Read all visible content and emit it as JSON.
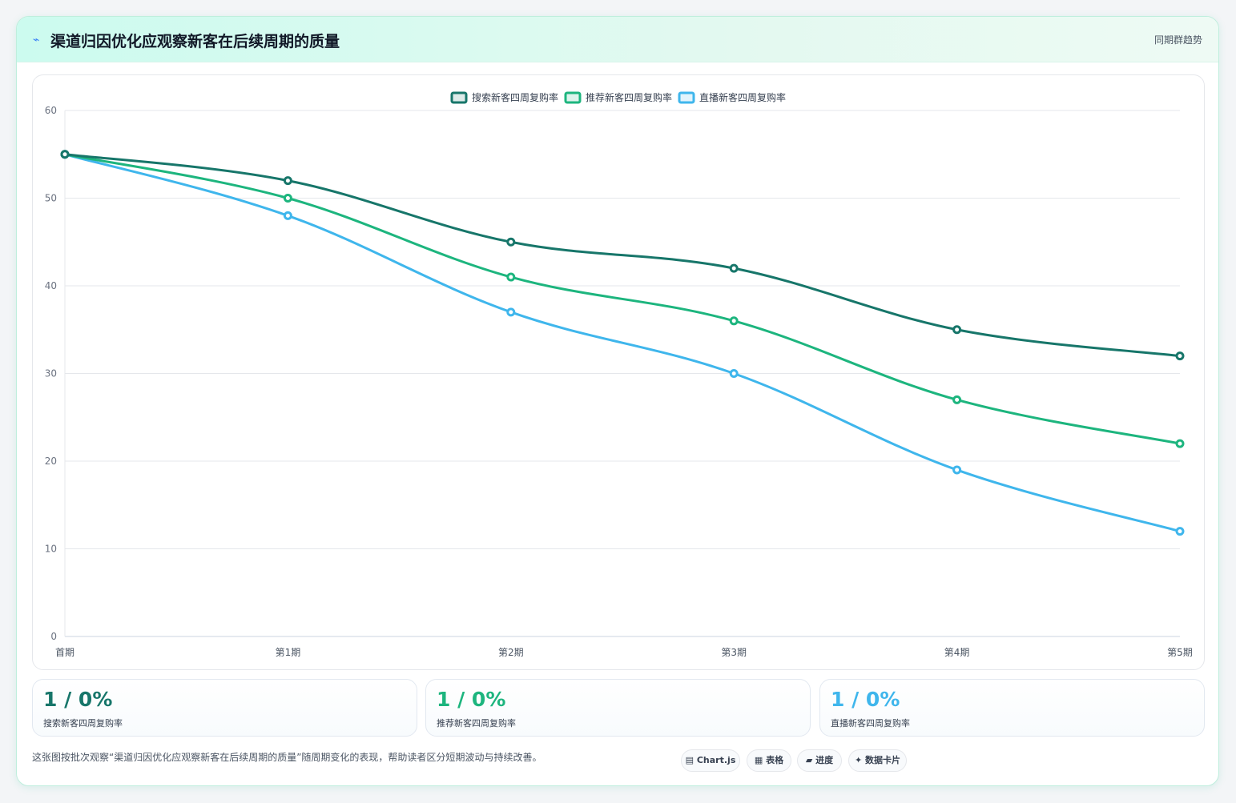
{
  "header": {
    "icon": "bolt-icon",
    "title": "渠道归因优化应观察新客在后续周期的质量",
    "tag": "同期群趋势"
  },
  "chart_data": {
    "type": "line",
    "categories": [
      "首期",
      "第1期",
      "第2期",
      "第3期",
      "第4期",
      "第5期"
    ],
    "ylim": [
      0,
      60
    ],
    "yticks": [
      0,
      10,
      20,
      30,
      40,
      50,
      60
    ],
    "grid": true,
    "legend_position": "top-center",
    "series": [
      {
        "name": "搜索新客四周复购率",
        "color": "#17766a",
        "values": [
          55,
          52,
          45,
          42,
          35,
          32
        ]
      },
      {
        "name": "推荐新客四周复购率",
        "color": "#1db57e",
        "values": [
          55,
          50,
          41,
          36,
          27,
          22
        ]
      },
      {
        "name": "直播新客四周复购率",
        "color": "#3fb6ec",
        "values": [
          55,
          48,
          37,
          30,
          19,
          12
        ]
      }
    ]
  },
  "stats": [
    {
      "value": "1 / 0%",
      "label": "搜索新客四周复购率",
      "color": "#17766a"
    },
    {
      "value": "1 / 0%",
      "label": "推荐新客四周复购率",
      "color": "#1db57e"
    },
    {
      "value": "1 / 0%",
      "label": "直播新客四周复购率",
      "color": "#3fb6ec"
    }
  ],
  "footnote": "这张图按批次观察“渠道归因优化应观察新客在后续周期的质量”随周期变化的表现，帮助读者区分短期波动与持续改善。",
  "pills": [
    {
      "icon": "chart-icon",
      "glyph": "▤",
      "label": "Chart.js"
    },
    {
      "icon": "table-icon",
      "glyph": "▦",
      "label": "表格"
    },
    {
      "icon": "progress-icon",
      "glyph": "▰",
      "label": "进度"
    },
    {
      "icon": "sparkle-icon",
      "glyph": "✦",
      "label": "数据卡片"
    }
  ]
}
